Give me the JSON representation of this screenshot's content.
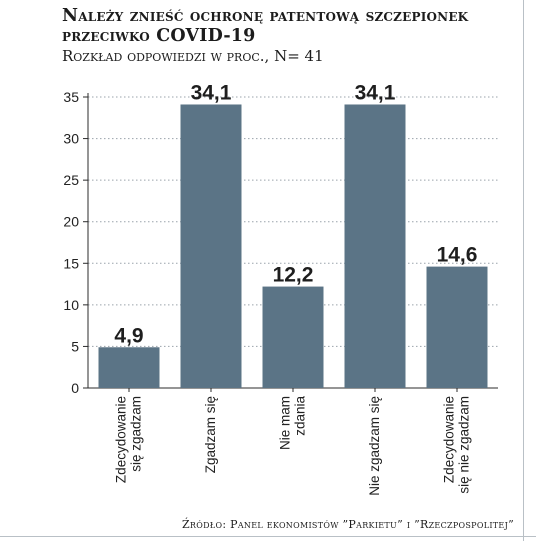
{
  "header": {
    "title": "Należy znieść ochronę patentową szczepionek przeciwko COVID-19",
    "subtitle": "Rozkład odpowiedzi w proc., N= 41"
  },
  "footer": {
    "source": "Źródło: Panel ekonomistów ”Parkietu” i ”Rzeczpospolitej”"
  },
  "colors": {
    "bar": "#5b7486",
    "axis": "#2b2b2b",
    "grid": "#9aa3ab"
  },
  "chart_data": {
    "type": "bar",
    "title": "Należy znieść ochronę patentową szczepionek przeciwko COVID-19",
    "subtitle": "Rozkład odpowiedzi w proc., N= 41",
    "categories": [
      [
        "Zdecydowanie",
        "się zgadzam"
      ],
      [
        "Zgadzam się"
      ],
      [
        "Nie mam",
        "zdania"
      ],
      [
        "Nie zgadzam się"
      ],
      [
        "Zdecydowanie",
        "się nie zgadzam"
      ]
    ],
    "values": [
      4.9,
      34.1,
      12.2,
      34.1,
      14.6
    ],
    "value_labels": [
      "4,9",
      "34,1",
      "12,2",
      "34,1",
      "14,6"
    ],
    "ylim": [
      0,
      35
    ],
    "yticks": [
      0,
      5,
      10,
      15,
      20,
      25,
      30,
      35
    ],
    "grid": true,
    "legend": "none"
  }
}
